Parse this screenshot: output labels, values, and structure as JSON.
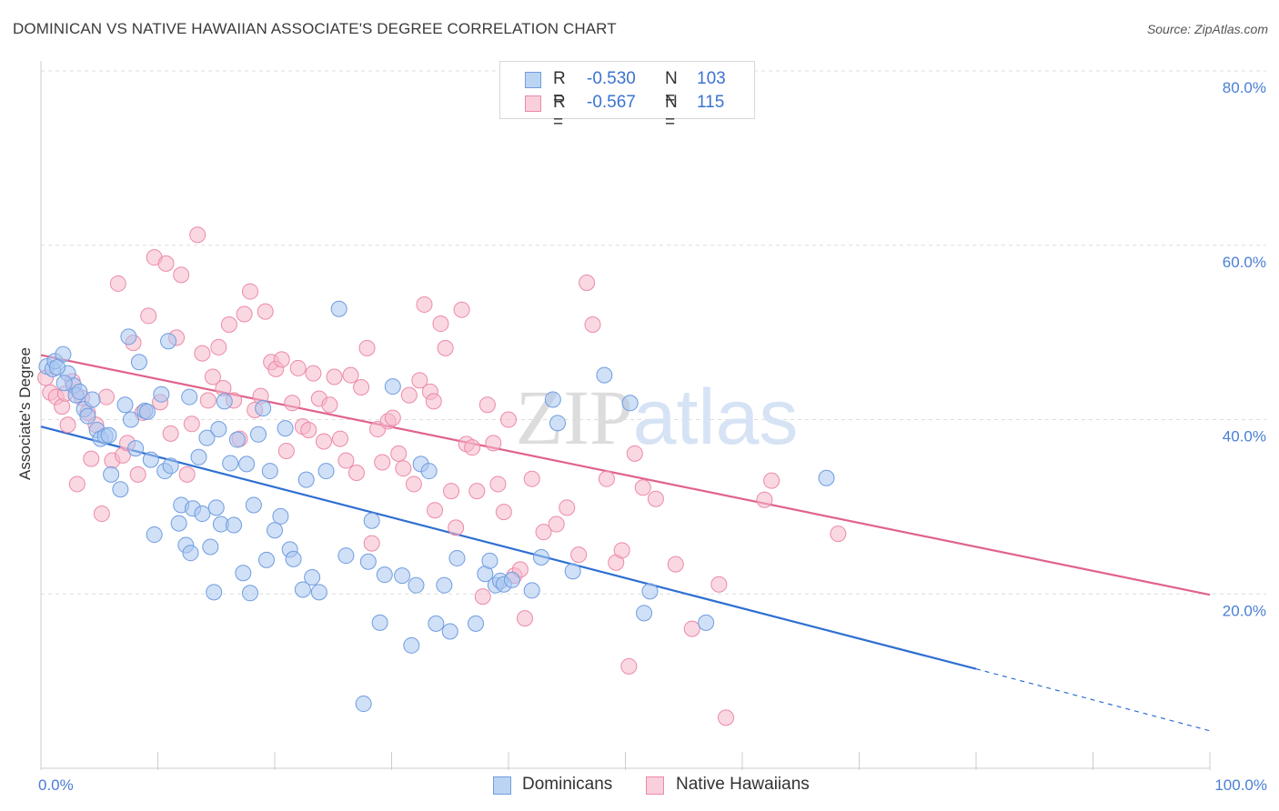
{
  "title": "DOMINICAN VS NATIVE HAWAIIAN ASSOCIATE'S DEGREE CORRELATION CHART",
  "source": "Source: ZipAtlas.com",
  "watermark": "ZIPatlas",
  "legend": {
    "series1": {
      "r_label": "R =",
      "r_value": "-0.530",
      "n_label": "N =",
      "n_value": "103"
    },
    "series2": {
      "r_label": "R =",
      "r_value": "-0.567",
      "n_label": "N =",
      "n_value": "115"
    }
  },
  "bottom_legend": {
    "series1": "Dominicans",
    "series2": "Native Hawaiians"
  },
  "colors": {
    "blue_fill": "#a9c7f0",
    "blue_stroke": "#6f9de0",
    "blue_line": "#2e6fd1",
    "pink_fill": "#f6b8cb",
    "pink_stroke": "#ec8aa8",
    "pink_line": "#e0628d",
    "tick_text": "#4a7fd4",
    "grid": "#dddddd"
  },
  "chart_data": {
    "type": "scatter",
    "title": "DOMINICAN VS NATIVE HAWAIIAN ASSOCIATE'S DEGREE CORRELATION CHART",
    "xlabel": "",
    "ylabel": "Associate's Degree",
    "xlim": [
      0,
      100
    ],
    "ylim": [
      0,
      80
    ],
    "x_tick_labels": [
      "0.0%",
      "100.0%"
    ],
    "y_ticks": [
      20,
      40,
      60,
      80
    ],
    "y_tick_labels": [
      "20.0%",
      "40.0%",
      "60.0%",
      "80.0%"
    ],
    "grid": true,
    "legend_position": "top-center",
    "series": [
      {
        "name": "Dominicans",
        "color": "#a9c7f0",
        "trend": {
          "x0": 0,
          "y0": 39.2,
          "x1": 80,
          "y1": 11.4,
          "dashed_to": 100,
          "dashed_y": 4.3
        },
        "points": [
          [
            0.5,
            46.1
          ],
          [
            1.0,
            45.8
          ],
          [
            1.2,
            46.7
          ],
          [
            1.9,
            47.5
          ],
          [
            2.3,
            45.3
          ],
          [
            2.8,
            43.9
          ],
          [
            3.0,
            42.8
          ],
          [
            3.7,
            41.2
          ],
          [
            4.0,
            40.4
          ],
          [
            4.4,
            42.3
          ],
          [
            4.8,
            38.8
          ],
          [
            5.1,
            37.8
          ],
          [
            5.5,
            38.1
          ],
          [
            6.0,
            33.7
          ],
          [
            6.8,
            32.0
          ],
          [
            7.2,
            41.7
          ],
          [
            7.5,
            49.5
          ],
          [
            7.7,
            40.0
          ],
          [
            8.1,
            36.7
          ],
          [
            8.4,
            46.6
          ],
          [
            8.9,
            41.0
          ],
          [
            9.4,
            35.4
          ],
          [
            9.7,
            26.8
          ],
          [
            10.3,
            42.9
          ],
          [
            10.6,
            34.1
          ],
          [
            10.9,
            49.0
          ],
          [
            11.1,
            34.7
          ],
          [
            11.8,
            28.1
          ],
          [
            12.0,
            30.2
          ],
          [
            12.4,
            25.6
          ],
          [
            12.8,
            24.7
          ],
          [
            13.0,
            29.8
          ],
          [
            13.5,
            35.7
          ],
          [
            13.8,
            29.2
          ],
          [
            14.2,
            37.9
          ],
          [
            14.5,
            25.4
          ],
          [
            14.8,
            20.2
          ],
          [
            15.0,
            29.9
          ],
          [
            15.4,
            28.0
          ],
          [
            15.7,
            42.1
          ],
          [
            16.2,
            35.0
          ],
          [
            16.5,
            27.9
          ],
          [
            16.8,
            37.7
          ],
          [
            17.3,
            22.4
          ],
          [
            17.6,
            34.9
          ],
          [
            17.9,
            20.1
          ],
          [
            18.2,
            30.2
          ],
          [
            18.6,
            38.3
          ],
          [
            19.0,
            41.3
          ],
          [
            19.3,
            23.9
          ],
          [
            19.6,
            34.1
          ],
          [
            20.0,
            27.3
          ],
          [
            20.5,
            28.9
          ],
          [
            20.9,
            39.0
          ],
          [
            21.3,
            25.1
          ],
          [
            21.6,
            24.0
          ],
          [
            22.4,
            20.5
          ],
          [
            22.7,
            33.1
          ],
          [
            23.2,
            21.9
          ],
          [
            23.8,
            20.2
          ],
          [
            24.4,
            34.1
          ],
          [
            25.5,
            52.7
          ],
          [
            26.1,
            24.4
          ],
          [
            27.6,
            7.4
          ],
          [
            28.0,
            23.7
          ],
          [
            28.3,
            28.4
          ],
          [
            29.0,
            16.7
          ],
          [
            29.4,
            22.2
          ],
          [
            30.1,
            43.8
          ],
          [
            30.9,
            22.1
          ],
          [
            31.7,
            14.1
          ],
          [
            32.1,
            21.0
          ],
          [
            32.5,
            34.9
          ],
          [
            33.2,
            34.1
          ],
          [
            33.8,
            16.6
          ],
          [
            34.5,
            21.0
          ],
          [
            35.0,
            15.7
          ],
          [
            35.6,
            24.1
          ],
          [
            37.2,
            16.6
          ],
          [
            38.0,
            22.3
          ],
          [
            38.4,
            23.8
          ],
          [
            38.9,
            21.0
          ],
          [
            39.3,
            21.5
          ],
          [
            39.6,
            21.1
          ],
          [
            40.3,
            21.6
          ],
          [
            42.0,
            20.4
          ],
          [
            42.8,
            24.2
          ],
          [
            43.8,
            42.3
          ],
          [
            44.2,
            39.6
          ],
          [
            45.5,
            22.6
          ],
          [
            48.2,
            45.1
          ],
          [
            50.4,
            41.9
          ],
          [
            51.6,
            17.8
          ],
          [
            52.1,
            20.3
          ],
          [
            56.9,
            16.7
          ],
          [
            67.2,
            33.3
          ],
          [
            1.4,
            46.0
          ],
          [
            2.0,
            44.2
          ],
          [
            3.3,
            43.2
          ],
          [
            5.8,
            38.2
          ],
          [
            9.1,
            40.9
          ],
          [
            12.7,
            42.6
          ],
          [
            15.2,
            38.9
          ]
        ]
      },
      {
        "name": "Native Hawaiians",
        "color": "#f6b8cb",
        "trend": {
          "x0": 0,
          "y0": 47.4,
          "x1": 100,
          "y1": 19.9
        },
        "points": [
          [
            0.4,
            44.8
          ],
          [
            0.8,
            43.1
          ],
          [
            1.3,
            42.6
          ],
          [
            1.8,
            41.5
          ],
          [
            2.3,
            39.4
          ],
          [
            2.7,
            44.4
          ],
          [
            3.1,
            32.6
          ],
          [
            3.5,
            42.5
          ],
          [
            4.0,
            40.8
          ],
          [
            4.3,
            35.5
          ],
          [
            4.7,
            39.4
          ],
          [
            5.2,
            29.2
          ],
          [
            5.6,
            42.6
          ],
          [
            6.1,
            35.3
          ],
          [
            6.6,
            55.6
          ],
          [
            7.0,
            35.9
          ],
          [
            7.4,
            37.3
          ],
          [
            7.9,
            48.8
          ],
          [
            8.3,
            33.7
          ],
          [
            8.7,
            40.8
          ],
          [
            9.2,
            51.9
          ],
          [
            9.7,
            58.6
          ],
          [
            10.2,
            42.0
          ],
          [
            10.7,
            57.9
          ],
          [
            11.1,
            38.4
          ],
          [
            11.6,
            49.4
          ],
          [
            12.0,
            56.6
          ],
          [
            12.5,
            33.7
          ],
          [
            12.9,
            39.5
          ],
          [
            13.4,
            61.2
          ],
          [
            13.8,
            47.6
          ],
          [
            14.3,
            42.2
          ],
          [
            14.7,
            44.9
          ],
          [
            15.2,
            48.3
          ],
          [
            15.6,
            43.6
          ],
          [
            16.1,
            50.9
          ],
          [
            16.5,
            42.2
          ],
          [
            17.0,
            37.8
          ],
          [
            17.4,
            52.1
          ],
          [
            17.9,
            54.7
          ],
          [
            18.3,
            41.1
          ],
          [
            18.8,
            42.7
          ],
          [
            19.2,
            52.4
          ],
          [
            19.7,
            46.6
          ],
          [
            20.1,
            45.8
          ],
          [
            20.6,
            46.9
          ],
          [
            21.0,
            36.4
          ],
          [
            21.5,
            41.9
          ],
          [
            22.0,
            45.9
          ],
          [
            22.4,
            39.2
          ],
          [
            22.9,
            38.8
          ],
          [
            23.3,
            45.3
          ],
          [
            23.8,
            42.4
          ],
          [
            24.2,
            37.5
          ],
          [
            24.7,
            41.7
          ],
          [
            25.1,
            44.9
          ],
          [
            25.6,
            37.8
          ],
          [
            26.1,
            35.3
          ],
          [
            26.5,
            45.1
          ],
          [
            27.0,
            33.9
          ],
          [
            27.4,
            43.7
          ],
          [
            27.9,
            48.2
          ],
          [
            28.3,
            25.8
          ],
          [
            28.8,
            38.9
          ],
          [
            29.2,
            35.1
          ],
          [
            29.7,
            39.8
          ],
          [
            30.1,
            40.2
          ],
          [
            30.6,
            36.1
          ],
          [
            31.0,
            34.4
          ],
          [
            31.5,
            42.8
          ],
          [
            31.9,
            32.6
          ],
          [
            32.4,
            44.5
          ],
          [
            32.8,
            53.2
          ],
          [
            33.3,
            43.2
          ],
          [
            33.7,
            29.6
          ],
          [
            34.2,
            51.0
          ],
          [
            34.6,
            48.2
          ],
          [
            35.1,
            31.8
          ],
          [
            35.5,
            27.6
          ],
          [
            36.0,
            52.6
          ],
          [
            36.4,
            37.2
          ],
          [
            36.9,
            36.8
          ],
          [
            37.3,
            31.8
          ],
          [
            37.8,
            19.7
          ],
          [
            38.2,
            41.7
          ],
          [
            38.7,
            37.3
          ],
          [
            39.1,
            32.6
          ],
          [
            39.6,
            29.4
          ],
          [
            40.0,
            40.0
          ],
          [
            40.5,
            22.1
          ],
          [
            41.0,
            22.8
          ],
          [
            41.4,
            17.2
          ],
          [
            42.0,
            33.2
          ],
          [
            43.0,
            27.1
          ],
          [
            44.1,
            28.0
          ],
          [
            45.0,
            29.9
          ],
          [
            46.0,
            24.5
          ],
          [
            46.7,
            55.7
          ],
          [
            47.2,
            50.9
          ],
          [
            48.4,
            33.2
          ],
          [
            49.2,
            23.6
          ],
          [
            49.7,
            25.0
          ],
          [
            50.3,
            11.7
          ],
          [
            50.8,
            36.1
          ],
          [
            51.5,
            32.2
          ],
          [
            52.6,
            30.9
          ],
          [
            54.3,
            23.4
          ],
          [
            55.7,
            16.0
          ],
          [
            58.0,
            21.1
          ],
          [
            58.6,
            5.8
          ],
          [
            61.9,
            30.8
          ],
          [
            62.5,
            33.0
          ],
          [
            68.2,
            26.9
          ],
          [
            2.1,
            43.0
          ],
          [
            33.6,
            42.1
          ]
        ]
      }
    ]
  }
}
